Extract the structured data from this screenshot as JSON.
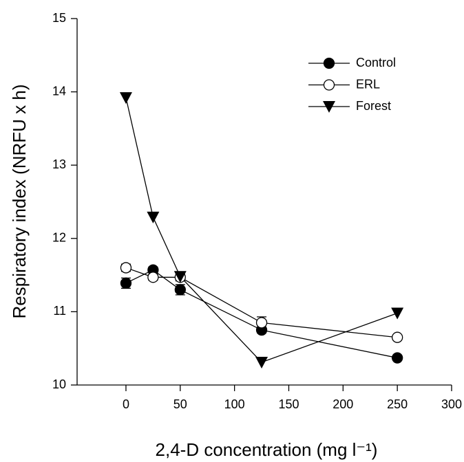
{
  "chart_data": {
    "type": "line",
    "xlabel": "2,4-D concentration (mg l⁻¹)",
    "ylabel": "Respiratory index (NRFU x h)",
    "x": [
      0,
      25,
      50,
      125,
      250
    ],
    "series": [
      {
        "name": "Control",
        "color": "#000000",
        "marker": "filled-circle",
        "values": [
          11.39,
          11.57,
          11.3,
          10.75,
          10.37
        ],
        "errors": [
          0.07,
          0.04,
          0.07,
          0.04,
          0.03
        ]
      },
      {
        "name": "ERL",
        "color": "#000000",
        "marker": "open-circle",
        "values": [
          11.6,
          11.47,
          11.47,
          10.85,
          10.65
        ],
        "errors": [
          0.05,
          0.04,
          0.05,
          0.08,
          0.02
        ]
      },
      {
        "name": "Forest",
        "color": "#000000",
        "marker": "triangle-down",
        "values": [
          13.92,
          12.29,
          11.48,
          10.31,
          10.98
        ]
      }
    ],
    "xlim": [
      -45,
      300
    ],
    "xticks": [
      0,
      50,
      100,
      150,
      200,
      250,
      300
    ],
    "ylim": [
      10,
      15
    ],
    "yticks": [
      10,
      11,
      12,
      13,
      14,
      15
    ],
    "grid": false,
    "legend": "upper right"
  }
}
